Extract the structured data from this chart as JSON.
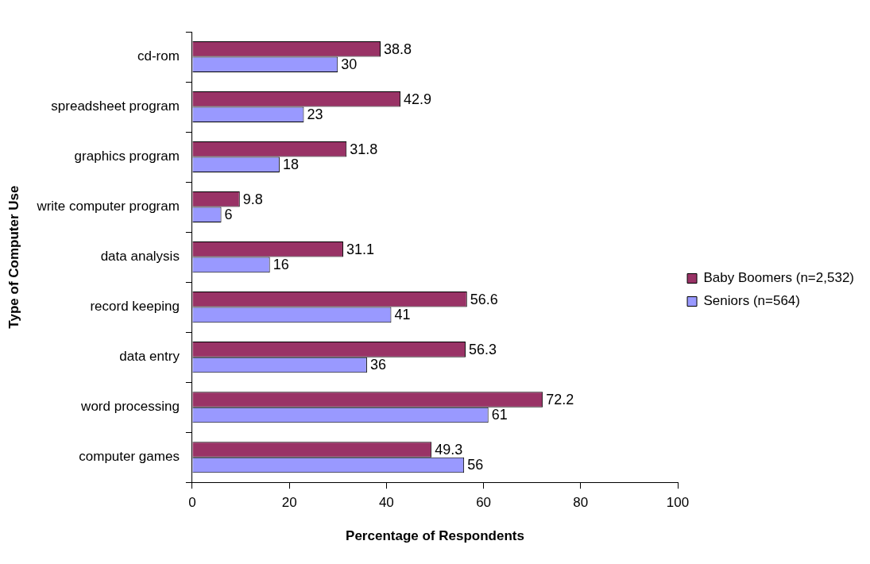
{
  "chart_data": {
    "type": "bar",
    "orientation": "horizontal",
    "xlabel": "Percentage of Respondents",
    "ylabel": "Type of Computer Use",
    "categories": [
      "cd-rom",
      "spreadsheet program",
      "graphics program",
      "write computer program",
      "data analysis",
      "record keeping",
      "data entry",
      "word processing",
      "computer games"
    ],
    "series": [
      {
        "name": "Baby Boomers (n=2,532)",
        "color": "#993366",
        "values": [
          38.8,
          42.9,
          31.8,
          9.8,
          31.1,
          56.6,
          56.3,
          72.2,
          49.3
        ]
      },
      {
        "name": "Seniors (n=564)",
        "color": "#9999ff",
        "values": [
          30,
          23,
          18,
          6,
          16,
          41,
          36,
          61,
          56
        ]
      }
    ],
    "xlim": [
      0,
      100
    ],
    "xticks": [
      0,
      20,
      40,
      60,
      80,
      100
    ],
    "data_labels": true,
    "legend": "right"
  }
}
